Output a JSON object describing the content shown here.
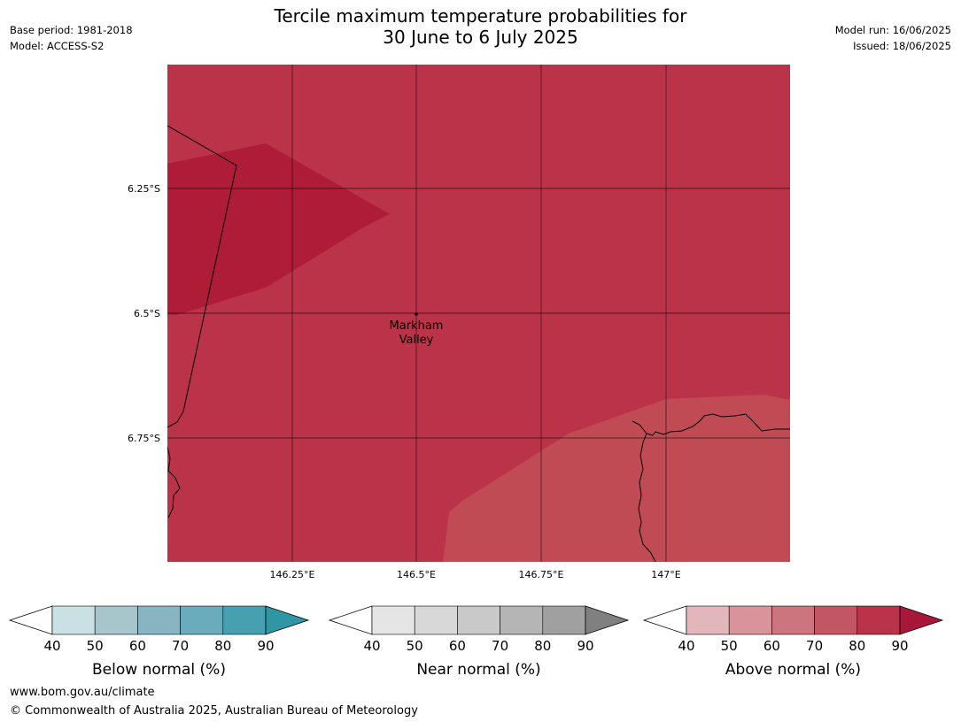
{
  "title_line1": "Tercile maximum temperature probabilities for",
  "title_line2": "30 June to 6 July 2025",
  "meta_left": [
    "Base period: 1981-2018",
    "Model: ACCESS-S2"
  ],
  "meta_right": [
    "Model run: 16/06/2025",
    "Issued: 18/06/2025"
  ],
  "map": {
    "place_label": [
      "Markham",
      "Valley"
    ],
    "lat_labels": [
      "6.25°S",
      "6.5°S",
      "6.75°S"
    ],
    "lon_labels": [
      "146.25°E",
      "146.5°E",
      "146.75°E",
      "147°E"
    ]
  },
  "legends": [
    {
      "label": "Below normal (%)",
      "ticks": [
        "40",
        "50",
        "60",
        "70",
        "80",
        "90"
      ],
      "colors": [
        "#c9e0e5",
        "#a7c6cc",
        "#88b5c1",
        "#6aacbb",
        "#47a0b0",
        "#2f96a6"
      ]
    },
    {
      "label": "Near normal (%)",
      "ticks": [
        "40",
        "50",
        "60",
        "70",
        "80",
        "90"
      ],
      "colors": [
        "#e5e5e5",
        "#d8d8d8",
        "#c9c9c9",
        "#b5b5b5",
        "#a0a0a0",
        "#808080"
      ]
    },
    {
      "label": "Above normal (%)",
      "ticks": [
        "40",
        "50",
        "60",
        "70",
        "80",
        "90"
      ],
      "colors": [
        "#e1b7bc",
        "#d8939b",
        "#cc757e",
        "#c25663",
        "#bb3348",
        "#a8163a"
      ]
    }
  ],
  "footer": {
    "url": "www.bom.gov.au/climate",
    "copyright": "© Commonwealth of Australia 2025, Australian Bureau of Meteorology"
  }
}
